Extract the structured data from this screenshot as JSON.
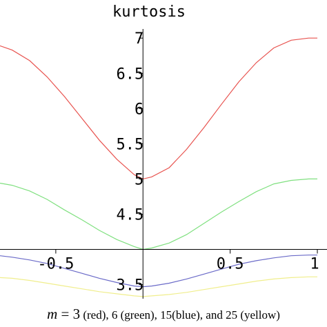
{
  "chart_data": {
    "type": "line",
    "title": "kurtosis",
    "xlim": [
      -0.82,
      1.0
    ],
    "ylim": [
      3.3,
      7.1
    ],
    "x_axis_crossing_y": 4.0,
    "y_axis_crossing_x": 0.0,
    "x_ticks": [
      {
        "value": -0.5,
        "label": "-0.5"
      },
      {
        "value": 0.5,
        "label": "0.5"
      },
      {
        "value": 1.0,
        "label": "1"
      }
    ],
    "y_ticks": [
      {
        "value": 3.5,
        "label": "3.5"
      },
      {
        "value": 4.5,
        "label": "4.5"
      },
      {
        "value": 5.0,
        "label": "5"
      },
      {
        "value": 5.5,
        "label": "5.5"
      },
      {
        "value": 6.0,
        "label": "6"
      },
      {
        "value": 6.5,
        "label": "6.5"
      },
      {
        "value": 7.0,
        "label": "7"
      }
    ],
    "grid": false,
    "series": [
      {
        "color": "#e8534f",
        "x": [
          -0.82,
          -0.75,
          -0.65,
          -0.55,
          -0.45,
          -0.35,
          -0.25,
          -0.15,
          -0.05,
          0.0,
          0.05,
          0.15,
          0.25,
          0.35,
          0.45,
          0.55,
          0.65,
          0.75,
          0.85,
          0.95,
          1.0
        ],
        "y": [
          6.89,
          6.83,
          6.68,
          6.45,
          6.17,
          5.86,
          5.55,
          5.28,
          5.06,
          5.0,
          5.03,
          5.16,
          5.42,
          5.73,
          6.06,
          6.38,
          6.65,
          6.86,
          6.97,
          7.0,
          7.0
        ]
      },
      {
        "color": "#7fe07f",
        "x": [
          -0.82,
          -0.75,
          -0.65,
          -0.55,
          -0.45,
          -0.35,
          -0.25,
          -0.15,
          -0.05,
          0.0,
          0.05,
          0.15,
          0.25,
          0.35,
          0.45,
          0.55,
          0.65,
          0.75,
          0.85,
          0.95,
          1.0
        ],
        "y": [
          4.94,
          4.91,
          4.83,
          4.71,
          4.56,
          4.42,
          4.27,
          4.14,
          4.04,
          4.0,
          4.02,
          4.09,
          4.21,
          4.37,
          4.53,
          4.68,
          4.82,
          4.93,
          4.98,
          5.0,
          5.0
        ]
      },
      {
        "color": "#6a6ac8",
        "x": [
          -0.82,
          -0.75,
          -0.65,
          -0.55,
          -0.45,
          -0.35,
          -0.25,
          -0.15,
          -0.05,
          0.0,
          0.05,
          0.15,
          0.25,
          0.35,
          0.45,
          0.55,
          0.65,
          0.75,
          0.85,
          0.95,
          1.0
        ],
        "y": [
          3.91,
          3.89,
          3.85,
          3.8,
          3.73,
          3.66,
          3.59,
          3.53,
          3.48,
          3.47,
          3.48,
          3.52,
          3.58,
          3.65,
          3.72,
          3.79,
          3.84,
          3.88,
          3.91,
          3.92,
          3.92
        ]
      },
      {
        "color": "#f0ee8c",
        "x": [
          -0.82,
          -0.75,
          -0.65,
          -0.55,
          -0.45,
          -0.35,
          -0.25,
          -0.15,
          -0.05,
          0.0,
          0.05,
          0.15,
          0.25,
          0.35,
          0.45,
          0.55,
          0.65,
          0.75,
          0.85,
          0.95,
          1.0
        ],
        "y": [
          3.6,
          3.59,
          3.56,
          3.52,
          3.48,
          3.44,
          3.4,
          3.37,
          3.34,
          3.33,
          3.34,
          3.36,
          3.39,
          3.43,
          3.47,
          3.51,
          3.55,
          3.58,
          3.6,
          3.61,
          3.61
        ]
      }
    ]
  },
  "caption": {
    "m_symbol": "m",
    "equals": " = ",
    "m_value": "3",
    "rest": " (red), 6 (green), 15(blue), and 25 (yellow)"
  }
}
